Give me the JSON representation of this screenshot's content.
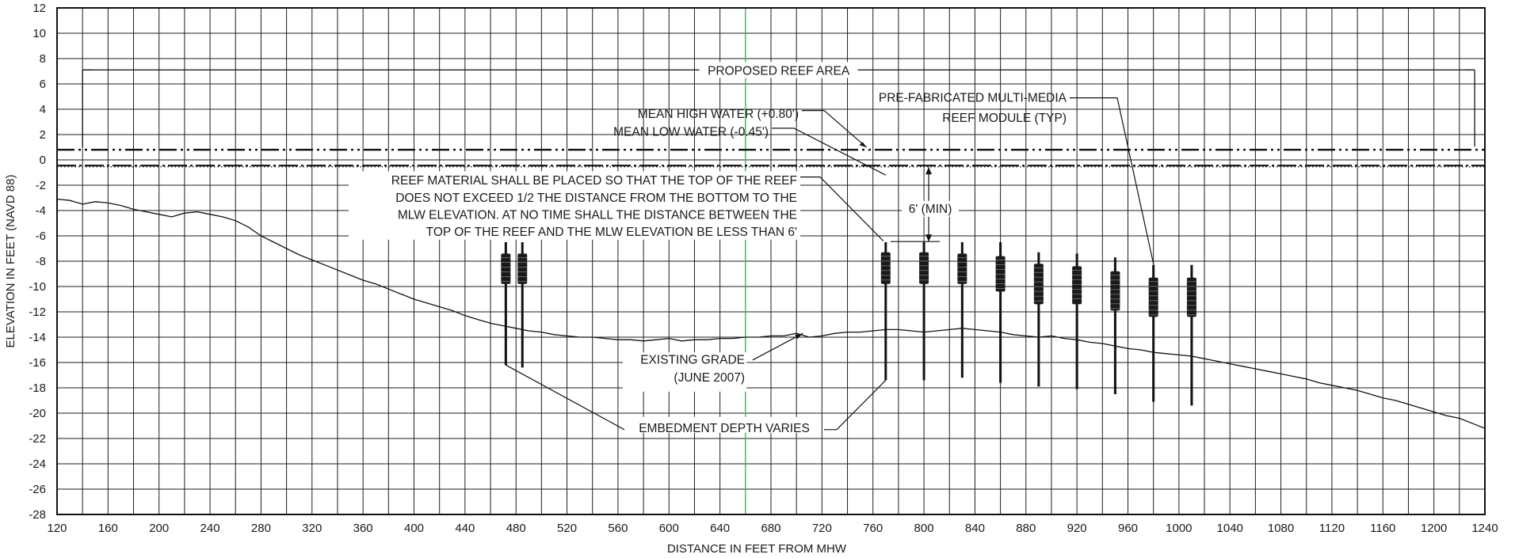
{
  "chart_data": {
    "type": "diagram",
    "xlabel": "DISTANCE IN FEET FROM MHW",
    "ylabel": "ELEVATION IN FEET (NAVD 88)",
    "xlim": [
      120,
      1240
    ],
    "ylim": [
      -28,
      12
    ],
    "x_ticks": [
      120,
      160,
      200,
      240,
      280,
      320,
      360,
      400,
      440,
      480,
      520,
      560,
      600,
      640,
      680,
      720,
      760,
      800,
      840,
      880,
      920,
      960,
      1000,
      1040,
      1080,
      1120,
      1160,
      1200,
      1240
    ],
    "y_ticks": [
      12,
      10,
      8,
      6,
      4,
      2,
      0,
      -2,
      -4,
      -6,
      -8,
      -10,
      -12,
      -14,
      -16,
      -18,
      -20,
      -22,
      -24,
      -26,
      -28
    ],
    "grid_x_step": 20,
    "grid_y_step": 2,
    "water_levels": {
      "mhw_elevation": 0.8,
      "mlw_elevation": -0.45
    },
    "center_line_x": 660,
    "reef_area": {
      "x_start": 140,
      "x_end": 1232,
      "y": 7.1
    },
    "existing_grade": [
      [
        120,
        -3.1
      ],
      [
        130,
        -3.2
      ],
      [
        140,
        -3.5
      ],
      [
        150,
        -3.3
      ],
      [
        160,
        -3.4
      ],
      [
        170,
        -3.6
      ],
      [
        180,
        -3.9
      ],
      [
        190,
        -4.1
      ],
      [
        200,
        -4.3
      ],
      [
        210,
        -4.5
      ],
      [
        220,
        -4.2
      ],
      [
        230,
        -4.1
      ],
      [
        240,
        -4.3
      ],
      [
        250,
        -4.5
      ],
      [
        260,
        -4.8
      ],
      [
        270,
        -5.3
      ],
      [
        280,
        -6.0
      ],
      [
        290,
        -6.5
      ],
      [
        300,
        -7.0
      ],
      [
        310,
        -7.5
      ],
      [
        320,
        -7.9
      ],
      [
        330,
        -8.3
      ],
      [
        340,
        -8.7
      ],
      [
        350,
        -9.1
      ],
      [
        360,
        -9.5
      ],
      [
        370,
        -9.8
      ],
      [
        380,
        -10.2
      ],
      [
        390,
        -10.6
      ],
      [
        400,
        -11.0
      ],
      [
        410,
        -11.3
      ],
      [
        420,
        -11.6
      ],
      [
        430,
        -11.9
      ],
      [
        440,
        -12.3
      ],
      [
        450,
        -12.6
      ],
      [
        460,
        -12.9
      ],
      [
        470,
        -13.1
      ],
      [
        480,
        -13.3
      ],
      [
        490,
        -13.5
      ],
      [
        500,
        -13.6
      ],
      [
        510,
        -13.8
      ],
      [
        520,
        -13.9
      ],
      [
        530,
        -14.0
      ],
      [
        540,
        -14.0
      ],
      [
        550,
        -14.1
      ],
      [
        560,
        -14.2
      ],
      [
        570,
        -14.2
      ],
      [
        580,
        -14.3
      ],
      [
        590,
        -14.2
      ],
      [
        600,
        -14.1
      ],
      [
        610,
        -14.3
      ],
      [
        620,
        -14.2
      ],
      [
        630,
        -14.2
      ],
      [
        640,
        -14.1
      ],
      [
        650,
        -14.1
      ],
      [
        660,
        -14.0
      ],
      [
        670,
        -14.0
      ],
      [
        680,
        -13.9
      ],
      [
        690,
        -13.9
      ],
      [
        700,
        -13.7
      ],
      [
        710,
        -14.0
      ],
      [
        720,
        -13.9
      ],
      [
        730,
        -13.7
      ],
      [
        740,
        -13.6
      ],
      [
        750,
        -13.6
      ],
      [
        760,
        -13.5
      ],
      [
        770,
        -13.4
      ],
      [
        780,
        -13.4
      ],
      [
        790,
        -13.5
      ],
      [
        800,
        -13.6
      ],
      [
        810,
        -13.5
      ],
      [
        820,
        -13.4
      ],
      [
        830,
        -13.3
      ],
      [
        840,
        -13.4
      ],
      [
        850,
        -13.5
      ],
      [
        860,
        -13.6
      ],
      [
        870,
        -13.8
      ],
      [
        880,
        -13.9
      ],
      [
        890,
        -14.0
      ],
      [
        900,
        -13.9
      ],
      [
        910,
        -14.1
      ],
      [
        920,
        -14.2
      ],
      [
        930,
        -14.4
      ],
      [
        940,
        -14.5
      ],
      [
        950,
        -14.7
      ],
      [
        960,
        -14.9
      ],
      [
        970,
        -15.0
      ],
      [
        980,
        -15.2
      ],
      [
        990,
        -15.3
      ],
      [
        1000,
        -15.4
      ],
      [
        1010,
        -15.5
      ],
      [
        1020,
        -15.7
      ],
      [
        1030,
        -15.9
      ],
      [
        1040,
        -16.1
      ],
      [
        1050,
        -16.3
      ],
      [
        1060,
        -16.5
      ],
      [
        1070,
        -16.7
      ],
      [
        1080,
        -16.9
      ],
      [
        1090,
        -17.1
      ],
      [
        1100,
        -17.3
      ],
      [
        1110,
        -17.6
      ],
      [
        1120,
        -17.8
      ],
      [
        1130,
        -18.0
      ],
      [
        1140,
        -18.2
      ],
      [
        1150,
        -18.5
      ],
      [
        1160,
        -18.8
      ],
      [
        1170,
        -19.0
      ],
      [
        1180,
        -19.3
      ],
      [
        1190,
        -19.6
      ],
      [
        1200,
        -19.9
      ],
      [
        1210,
        -20.2
      ],
      [
        1220,
        -20.4
      ],
      [
        1230,
        -20.8
      ],
      [
        1240,
        -21.2
      ]
    ],
    "reef_modules": [
      {
        "x": 472,
        "pile_top": -6.5,
        "pile_bottom": -16.2,
        "module_top": -7.4,
        "module_bottom": -9.8
      },
      {
        "x": 485,
        "pile_top": -6.5,
        "pile_bottom": -16.4,
        "module_top": -7.4,
        "module_bottom": -9.8
      },
      {
        "x": 770,
        "pile_top": -6.5,
        "pile_bottom": -17.4,
        "module_top": -7.3,
        "module_bottom": -9.8
      },
      {
        "x": 800,
        "pile_top": -6.5,
        "pile_bottom": -17.4,
        "module_top": -7.3,
        "module_bottom": -9.8
      },
      {
        "x": 830,
        "pile_top": -6.5,
        "pile_bottom": -17.2,
        "module_top": -7.4,
        "module_bottom": -9.8
      },
      {
        "x": 860,
        "pile_top": -6.5,
        "pile_bottom": -17.6,
        "module_top": -7.6,
        "module_bottom": -10.4
      },
      {
        "x": 890,
        "pile_top": -7.3,
        "pile_bottom": -17.9,
        "module_top": -8.2,
        "module_bottom": -11.4
      },
      {
        "x": 920,
        "pile_top": -7.4,
        "pile_bottom": -18.1,
        "module_top": -8.4,
        "module_bottom": -11.4
      },
      {
        "x": 950,
        "pile_top": -7.7,
        "pile_bottom": -18.5,
        "module_top": -8.8,
        "module_bottom": -11.9
      },
      {
        "x": 980,
        "pile_top": -8.3,
        "pile_bottom": -19.1,
        "module_top": -9.3,
        "module_bottom": -12.4
      },
      {
        "x": 1010,
        "pile_top": -8.3,
        "pile_bottom": -19.4,
        "module_top": -9.3,
        "module_bottom": -12.4
      }
    ],
    "min_clearance_dim": {
      "x": 800,
      "y_top": -0.45,
      "y_bottom": -6.45
    },
    "annotations": {
      "reef_area": "PROPOSED REEF AREA",
      "mhw": "MEAN HIGH WATER (+0.80')",
      "mlw": "MEAN LOW WATER (-0.45')",
      "module_line1": "PRE-FABRICATED MULTI-MEDIA",
      "module_line2": "REEF MODULE (TYP)",
      "reef_note_line1": "REEF MATERIAL SHALL BE PLACED SO THAT THE TOP OF THE REEF",
      "reef_note_line2": "DOES NOT EXCEED 1/2 THE DISTANCE FROM THE BOTTOM TO THE",
      "reef_note_line3": "MLW ELEVATION. AT NO TIME SHALL THE DISTANCE BETWEEN THE",
      "reef_note_line4": "TOP OF THE REEF AND THE MLW ELEVATION BE LESS THAN 6'",
      "min_dim": "6' (MIN)",
      "grade_line1": "EXISTING GRADE",
      "grade_line2": "(JUNE 2007)",
      "embedment": "EMBEDMENT DEPTH VARIES"
    }
  }
}
